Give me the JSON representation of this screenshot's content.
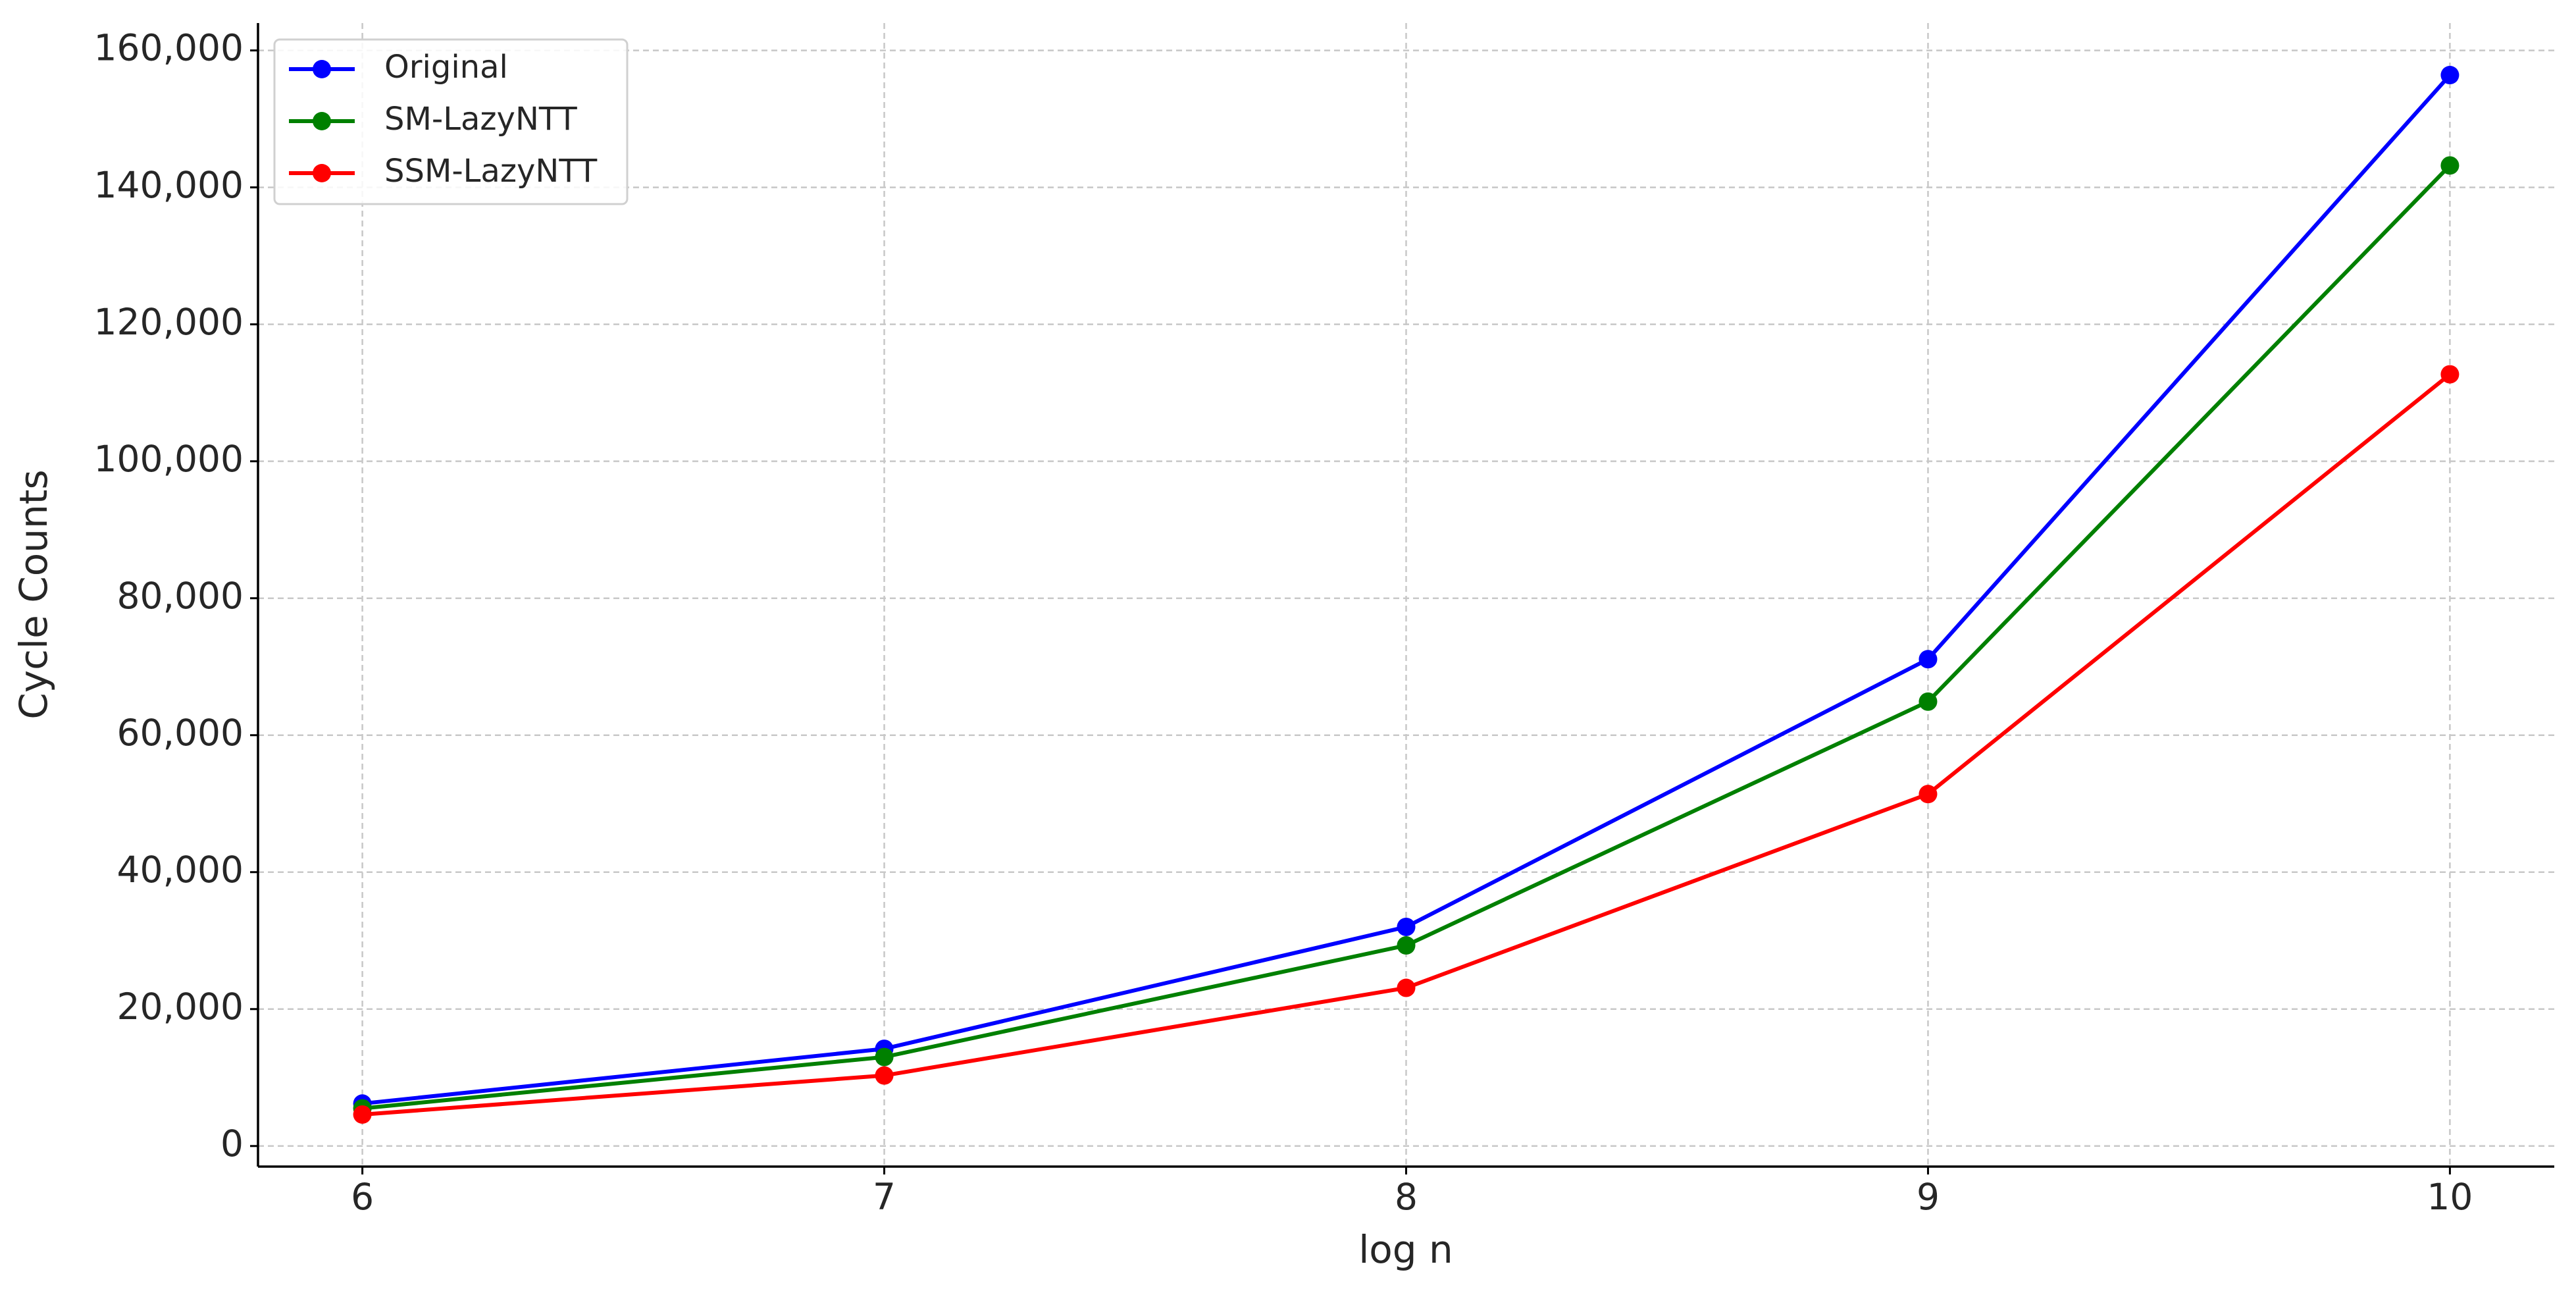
{
  "chart_data": {
    "type": "line",
    "x_label": "log n",
    "y_label": "Cycle Counts",
    "x": [
      6,
      7,
      8,
      9,
      10
    ],
    "series": [
      {
        "name": "Original",
        "color": "#0000ff",
        "values": [
          6200,
          14200,
          32000,
          71100,
          156400
        ]
      },
      {
        "name": "SM-LazyNTT",
        "color": "#008000",
        "values": [
          5500,
          13000,
          29300,
          64900,
          143200
        ]
      },
      {
        "name": "SSM-LazyNTT",
        "color": "#ff0000",
        "values": [
          4600,
          10300,
          23100,
          51400,
          112700
        ]
      }
    ],
    "xlim": [
      5.8,
      10.2
    ],
    "xticks": [
      6,
      7,
      8,
      9,
      10
    ],
    "ylim": [
      -3000,
      164000
    ],
    "yticks": [
      0,
      {
        "value": 20000,
        "label": "20,000"
      },
      {
        "value": 40000,
        "label": "40,000"
      },
      {
        "value": 60000,
        "label": "60,000"
      },
      {
        "value": 80000,
        "label": "80,000"
      },
      {
        "value": 100000,
        "label": "100,000"
      },
      {
        "value": 120000,
        "label": "120,000"
      },
      {
        "value": 140000,
        "label": "140,000"
      },
      {
        "value": 160000,
        "label": "160,000"
      }
    ],
    "grid": true,
    "legend": "upper left"
  }
}
